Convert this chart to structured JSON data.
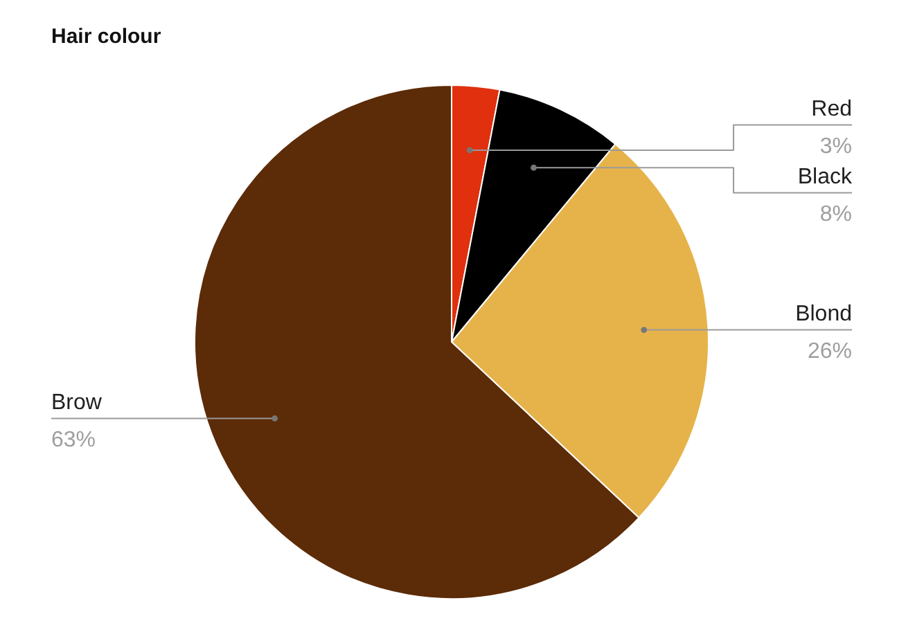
{
  "chart_data": {
    "type": "pie",
    "title": "Hair colour",
    "categories": [
      "Red",
      "Black",
      "Blond",
      "Brow"
    ],
    "values": [
      3,
      8,
      26,
      63
    ],
    "colors": [
      "#e0300e",
      "#000000",
      "#e6b34b",
      "#5c2b07"
    ],
    "value_labels": [
      "3%",
      "8%",
      "26%",
      "63%"
    ],
    "legend": false
  }
}
